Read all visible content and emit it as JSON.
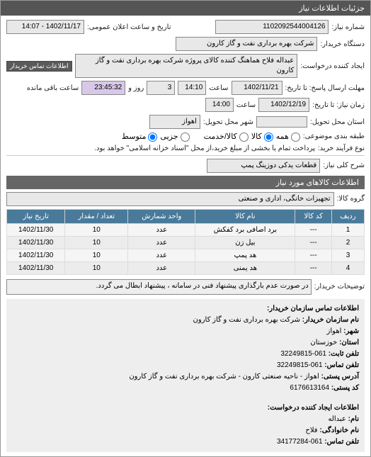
{
  "header": {
    "title": "جزئیات اطلاعات نیاز"
  },
  "top": {
    "req_no_label": "شماره نیاز:",
    "req_no": "1102092544004126",
    "announce_label": "تاریخ و ساعت اعلان عمومی:",
    "announce_value": "1402/11/17 - 14:07",
    "buyer_label": "دستگاه خریدار:",
    "buyer": "شرکت بهره برداری نفت و گاز کارون",
    "creator_label": "ایجاد کننده درخواست:",
    "creator": "عبداله فلاح هماهنگ کننده کالای پروژه شرکت بهره برداری نفت و گاز کارون",
    "contact_btn": "اطلاعات تماس خریدار",
    "deadline_send_label": "مهلت ارسال پاسخ: تا تاریخ:",
    "deadline_send_date": "1402/11/21",
    "time_label": "ساعت",
    "deadline_send_time": "14:10",
    "days_label": "روز و",
    "days_value": "3",
    "remain_time": "23:45:32",
    "remain_label": "ساعت باقی مانده",
    "deadline_need_label": "زمان نیاز: تا تاریخ:",
    "deadline_need_date": "1402/12/19",
    "deadline_need_time": "14:00",
    "province_label": "استان محل تحویل:",
    "city_label": "شهر محل تحویل:",
    "city": "اهواز",
    "category_label": "طبقه بندی موضوعی:",
    "opt_all": "همه",
    "opt_good": "کالا",
    "opt_service": "کالا/خدمت",
    "opt_partial": "جزیی",
    "opt_medium": "متوسط",
    "process_label": "نوع فرآیند خرید:",
    "process_text": "پرداخت تمام یا بخشی از مبلغ خرید،از محل \"اسناد خزانه اسلامی\" خواهد بود."
  },
  "desc": {
    "label": "شرح کلی نیاز:",
    "value": "قطعات یدکی دوزینگ پمپ"
  },
  "items_header": "اطلاعات کالاهای مورد نیاز",
  "group": {
    "label": "گروه کالا:",
    "value": "تجهیزات خانگی، اداری و صنعتی"
  },
  "table": {
    "cols": [
      "ردیف",
      "کد کالا",
      "نام کالا",
      "واحد شمارش",
      "تعداد / مقدار",
      "تاریخ نیاز"
    ],
    "rows": [
      [
        "1",
        "---",
        "برد اصافی برد کفکش",
        "عدد",
        "10",
        "1402/11/30"
      ],
      [
        "2",
        "---",
        "بیل زن",
        "عدد",
        "10",
        "1402/11/30"
      ],
      [
        "3",
        "---",
        "هد پمپ",
        "عدد",
        "10",
        "1402/11/30"
      ],
      [
        "4",
        "---",
        "هد یمنی",
        "عدد",
        "10",
        "1402/11/30"
      ]
    ]
  },
  "buyer_note": {
    "label": "توضیحات خریدار:",
    "value": "در صورت عدم بارگذاری پیشنهاد فنی در سامانه ، پیشنهاد ابطال می گردد."
  },
  "contact_org": {
    "title": "اطلاعات تماس سازمان خریدار:",
    "org_name_label": "نام سازمان خریدار:",
    "org_name": "شرکت بهره برداری نفت و گاز کارون",
    "city_label": "شهر:",
    "city": "اهواز",
    "province_label": "استان:",
    "province": "خوزستان",
    "phone_label": "تلفن ثابت:",
    "phone": "061-32249815",
    "fax_label": "تلفن تماس:",
    "fax": "061-32249815",
    "address_label": "آدرس پستی:",
    "address": "اهواز - ناحیه صنعتی کارون - شرکت بهره برداری نفت و گاز کارون",
    "postal_label": "کد پستی:",
    "postal": "6176613164"
  },
  "contact_person": {
    "title": "اطلاعات ایجاد کننده درخواست:",
    "name_label": "نام:",
    "name": "عبداله",
    "lname_label": "نام خانوادگی:",
    "lname": "فلاح",
    "phone_label": "تلفن تماس:",
    "phone": "061-34177284"
  }
}
